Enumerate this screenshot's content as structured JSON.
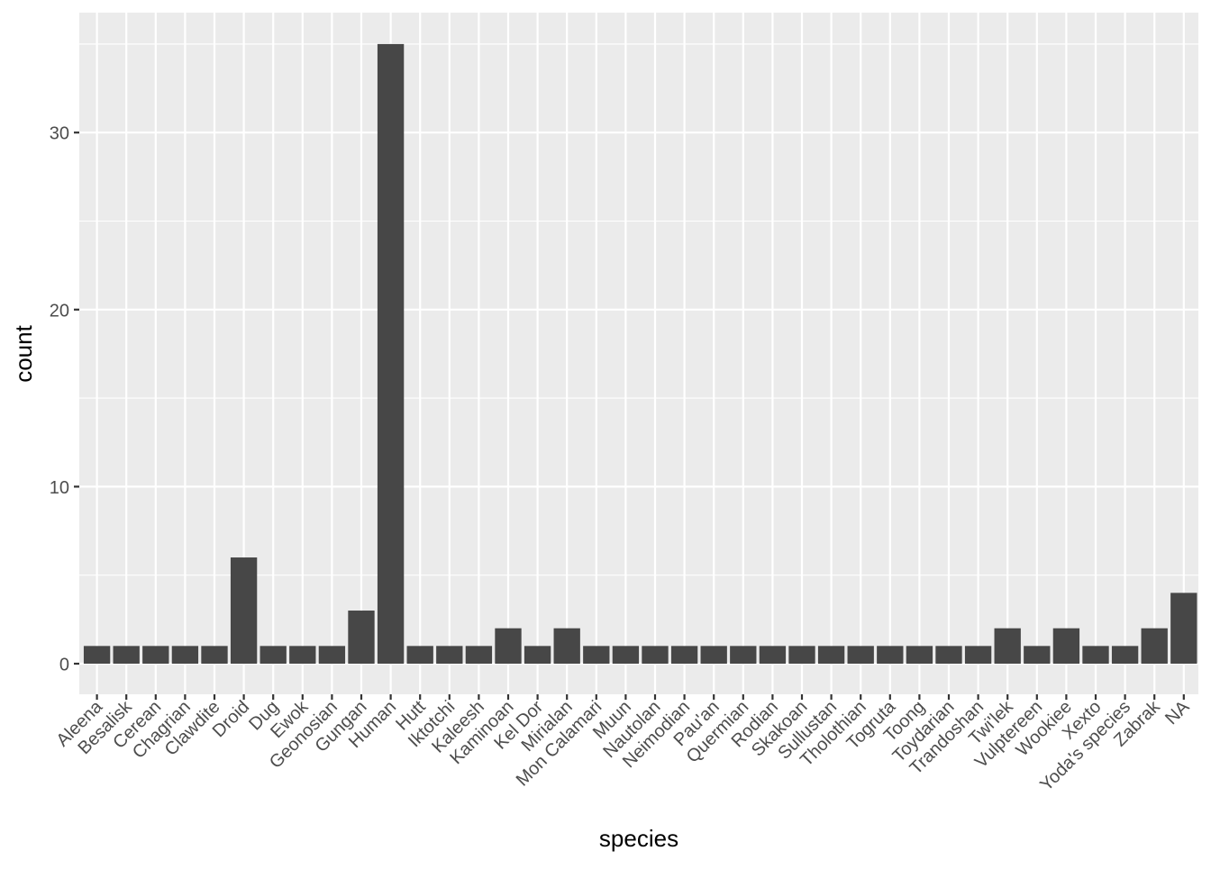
{
  "chart_data": {
    "type": "bar",
    "title": "",
    "xlabel": "species",
    "ylabel": "count",
    "ylim": [
      0,
      35
    ],
    "yticks": [
      0,
      10,
      20,
      30
    ],
    "grid": true,
    "legend": "none",
    "categories": [
      "Aleena",
      "Besalisk",
      "Cerean",
      "Chagrian",
      "Clawdite",
      "Droid",
      "Dug",
      "Ewok",
      "Geonosian",
      "Gungan",
      "Human",
      "Hutt",
      "Iktotchi",
      "Kaleesh",
      "Kaminoan",
      "Kel Dor",
      "Mirialan",
      "Mon Calamari",
      "Muun",
      "Nautolan",
      "Neimodian",
      "Pau'an",
      "Quermian",
      "Rodian",
      "Skakoan",
      "Sullustan",
      "Tholothian",
      "Togruta",
      "Toong",
      "Toydarian",
      "Trandoshan",
      "Twi'lek",
      "Vulptereen",
      "Wookiee",
      "Xexto",
      "Yoda's species",
      "Zabrak",
      "NA"
    ],
    "values": [
      1,
      1,
      1,
      1,
      1,
      6,
      1,
      1,
      1,
      3,
      35,
      1,
      1,
      1,
      2,
      1,
      2,
      1,
      1,
      1,
      1,
      1,
      1,
      1,
      1,
      1,
      1,
      1,
      1,
      1,
      1,
      2,
      1,
      2,
      1,
      1,
      2,
      4
    ],
    "colors": {
      "panel": "#ebebeb",
      "bar": "#474747",
      "grid": "#ffffff",
      "text": "#4d4d4d",
      "title": "#000000"
    }
  }
}
